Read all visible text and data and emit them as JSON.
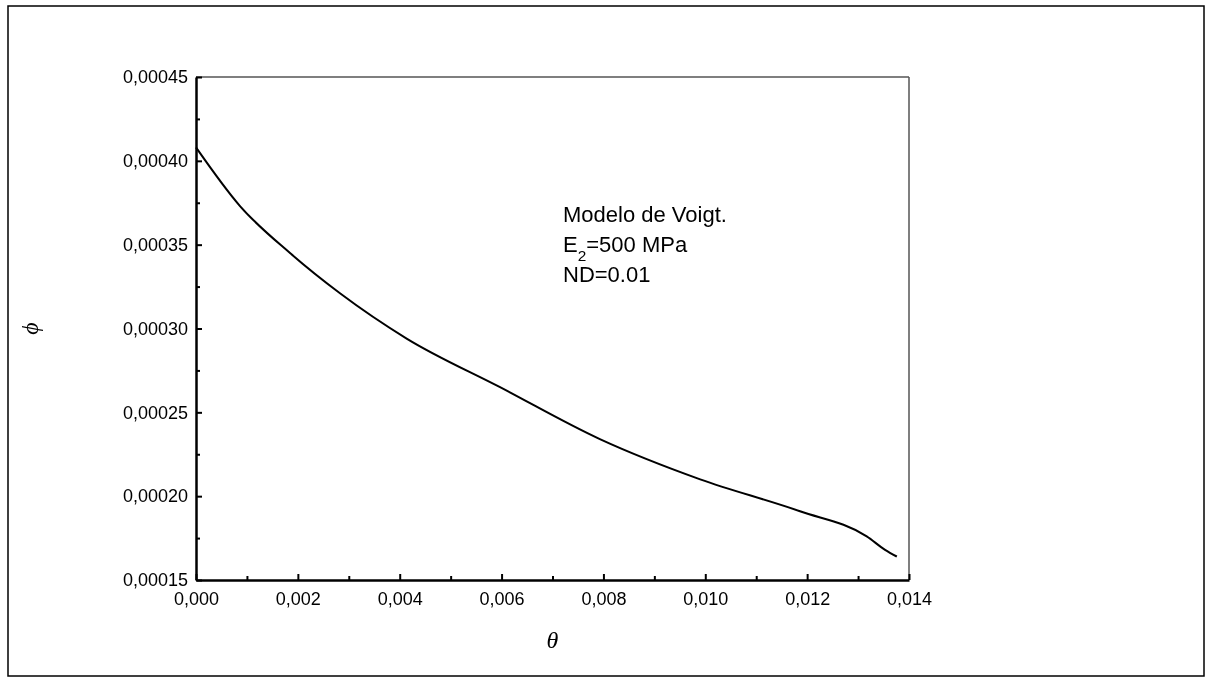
{
  "chart_data": {
    "type": "line",
    "xlabel": "θ",
    "ylabel": "ϕ",
    "x": [
      0,
      0.000864,
      0.001846,
      0.002827,
      0.004136,
      0.00597,
      0.00793,
      0.0099,
      0.01186,
      0.01317,
      0.01353,
      0.01376
    ],
    "series": [
      {
        "color": "#000000",
        "values": [
          0.000408,
          0.000373,
          0.000345,
          0.000321,
          0.000294,
          0.000265,
          0.000234,
          0.00021,
          0.000191,
          0.000176,
          0.000168,
          0.000164
        ]
      }
    ],
    "xlim": [
      0,
      0.014
    ],
    "xticks": [
      {
        "value": 0,
        "label": "0,000"
      },
      {
        "value": 0.001,
        "label": null
      },
      {
        "value": 0.002,
        "label": "0,002"
      },
      {
        "value": 0.003,
        "label": null
      },
      {
        "value": 0.004,
        "label": "0,004"
      },
      {
        "value": 0.005,
        "label": null
      },
      {
        "value": 0.006,
        "label": "0,006"
      },
      {
        "value": 0.007,
        "label": null
      },
      {
        "value": 0.008,
        "label": "0,008"
      },
      {
        "value": 0.009,
        "label": null
      },
      {
        "value": 0.01,
        "label": "0,010"
      },
      {
        "value": 0.011,
        "label": null
      },
      {
        "value": 0.012,
        "label": "0,012"
      },
      {
        "value": 0.013,
        "label": null
      },
      {
        "value": 0.014,
        "label": "0,014"
      }
    ],
    "ylim": [
      0.00015,
      0.00045
    ],
    "yticks": [
      {
        "value": 0.00015,
        "label": "0,00015"
      },
      {
        "value": 0.000175,
        "label": null
      },
      {
        "value": 0.0002,
        "label": "0,00020"
      },
      {
        "value": 0.000225,
        "label": null
      },
      {
        "value": 0.00025,
        "label": "0,00025"
      },
      {
        "value": 0.000275,
        "label": null
      },
      {
        "value": 0.0003,
        "label": "0,00030"
      },
      {
        "value": 0.000325,
        "label": null
      },
      {
        "value": 0.00035,
        "label": "0,00035"
      },
      {
        "value": 0.000375,
        "label": null
      },
      {
        "value": 0.0004,
        "label": "0,00040"
      },
      {
        "value": 0.000425,
        "label": null
      },
      {
        "value": 0.00045,
        "label": "0,00045"
      }
    ],
    "annotations": [
      "Modelo de Voigt.",
      "E$_{2}$=500 MPa",
      "ND=0.01"
    ],
    "grid": false,
    "marker": "none",
    "line_style": "solid"
  }
}
